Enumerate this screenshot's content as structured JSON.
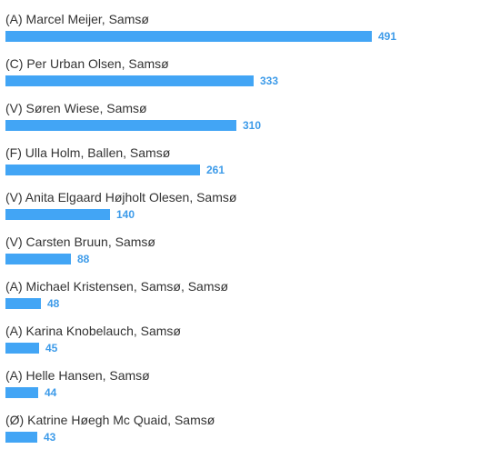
{
  "colors": {
    "bar": "#42a5f5",
    "value_text": "#3d9be9",
    "label_text": "#333333"
  },
  "chart_data": {
    "type": "bar",
    "orientation": "horizontal",
    "categories": [
      "(A) Marcel Meijer, Samsø",
      "(C) Per Urban Olsen, Samsø",
      "(V) Søren Wiese, Samsø",
      "(F) Ulla Holm, Ballen, Samsø",
      "(V) Anita Elgaard Højholt Olesen, Samsø",
      "(V) Carsten Bruun, Samsø",
      "(A) Michael Kristensen, Samsø, Samsø",
      "(A) Karina Knobelauch, Samsø",
      "(A) Helle Hansen, Samsø",
      "(Ø) Katrine Høegh Mc Quaid, Samsø"
    ],
    "values": [
      491,
      333,
      310,
      261,
      140,
      88,
      48,
      45,
      44,
      43
    ],
    "title": "",
    "xlabel": "",
    "ylabel": "",
    "xlim": [
      0,
      491
    ],
    "grid": false,
    "legend": "none"
  }
}
